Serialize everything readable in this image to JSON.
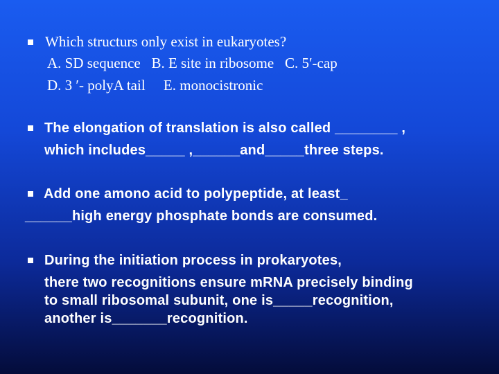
{
  "items": [
    {
      "lines": [
        "Which structurs only exist in eukaryotes?",
        "A. SD sequence   B. E site in ribosome   C. 5′-cap",
        "D. 3 ′- polyA tail     E. monocistronic"
      ]
    },
    {
      "lines": [
        "The elongation of translation is also called ________ ,",
        "which includes_____ ,______and_____three steps."
      ]
    },
    {
      "lines": [
        "Add one amono acid to polypeptide, at least_",
        "______high energy phosphate bonds are consumed."
      ]
    },
    {
      "lines": [
        "During the initiation process in prokaryotes,",
        "there two recognitions ensure mRNA precisely binding",
        "to small ribosomal subunit, one is_____recognition,",
        "another is_______recognition."
      ]
    }
  ]
}
